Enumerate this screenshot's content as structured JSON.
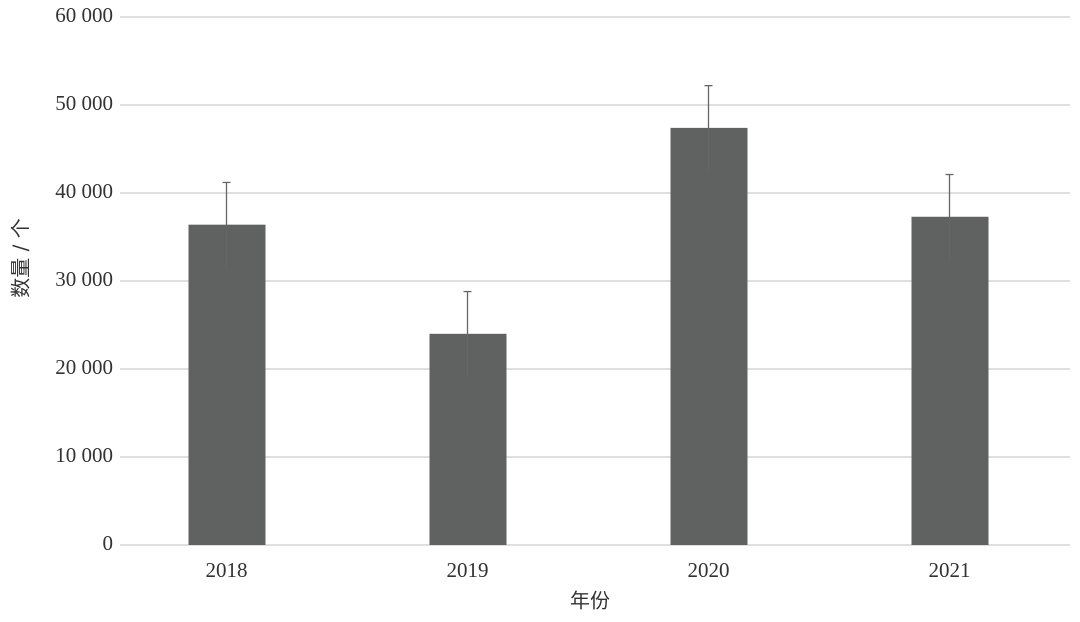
{
  "chart_data": {
    "type": "bar",
    "x_label": "年份",
    "y_label": "数量 / 个",
    "categories": [
      "2018",
      "2019",
      "2020",
      "2021"
    ],
    "values": [
      36400,
      24000,
      47400,
      37300
    ],
    "errors": [
      4800,
      4800,
      4800,
      4800
    ],
    "color": "#5f6261",
    "error_color": "#666666",
    "ylim": [
      0,
      60000
    ],
    "yticks": [
      0,
      {
        "value": 10000,
        "label": "10 000"
      },
      {
        "value": 20000,
        "label": "20 000"
      },
      {
        "value": 30000,
        "label": "30 000"
      },
      {
        "value": 40000,
        "label": "40 000"
      },
      {
        "value": 50000,
        "label": "50 000"
      },
      {
        "value": 60000,
        "label": "60 000"
      }
    ],
    "grid": true
  }
}
